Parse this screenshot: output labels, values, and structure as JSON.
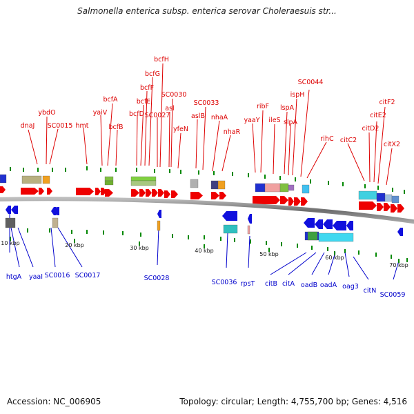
{
  "title": "Salmonella enterica subsp. enterica serovar Choleraesuis str...",
  "footer": {
    "accession": "Accession: NC_006905",
    "topology": "Topology: circular; Length: 4,755,700 bp; Genes: 4,516"
  },
  "colors": {
    "forward_gene": "#ee0000",
    "reverse_gene": "#1010dd",
    "backbone": "#808080",
    "forward_label": "#dd0000",
    "reverse_label": "#0000cc",
    "tick": "#008800"
  },
  "scale_labels": [
    "10 kbp",
    "20 kbp",
    "30 kbp",
    "40 kbp",
    "50 kbp",
    "60 kbp",
    "70 kbp"
  ],
  "forward_genes": [
    "dnaJ",
    "ybdO",
    "SC0015",
    "hmt",
    "yaiV",
    "bcfA",
    "bcfB",
    "bcfD",
    "bcfE",
    "bcfF",
    "bcfG",
    "bcfH",
    "SC0027",
    "asl",
    "SC0030",
    "yfeN",
    "aslB",
    "SC0033",
    "nhaA",
    "nhaR",
    "yaaY",
    "ribF",
    "ileS",
    "lspA",
    "slpA",
    "ispH",
    "SC0044",
    "rihC",
    "citC2",
    "citD2",
    "citE2",
    "citF2",
    "citX2"
  ],
  "reverse_genes": [
    "htgA",
    "yaaI",
    "SC0016",
    "SC0017",
    "SC0028",
    "SC0036",
    "rpsT",
    "citB",
    "citA",
    "oadB",
    "oadA",
    "oag3",
    "citN",
    "SC0059"
  ]
}
